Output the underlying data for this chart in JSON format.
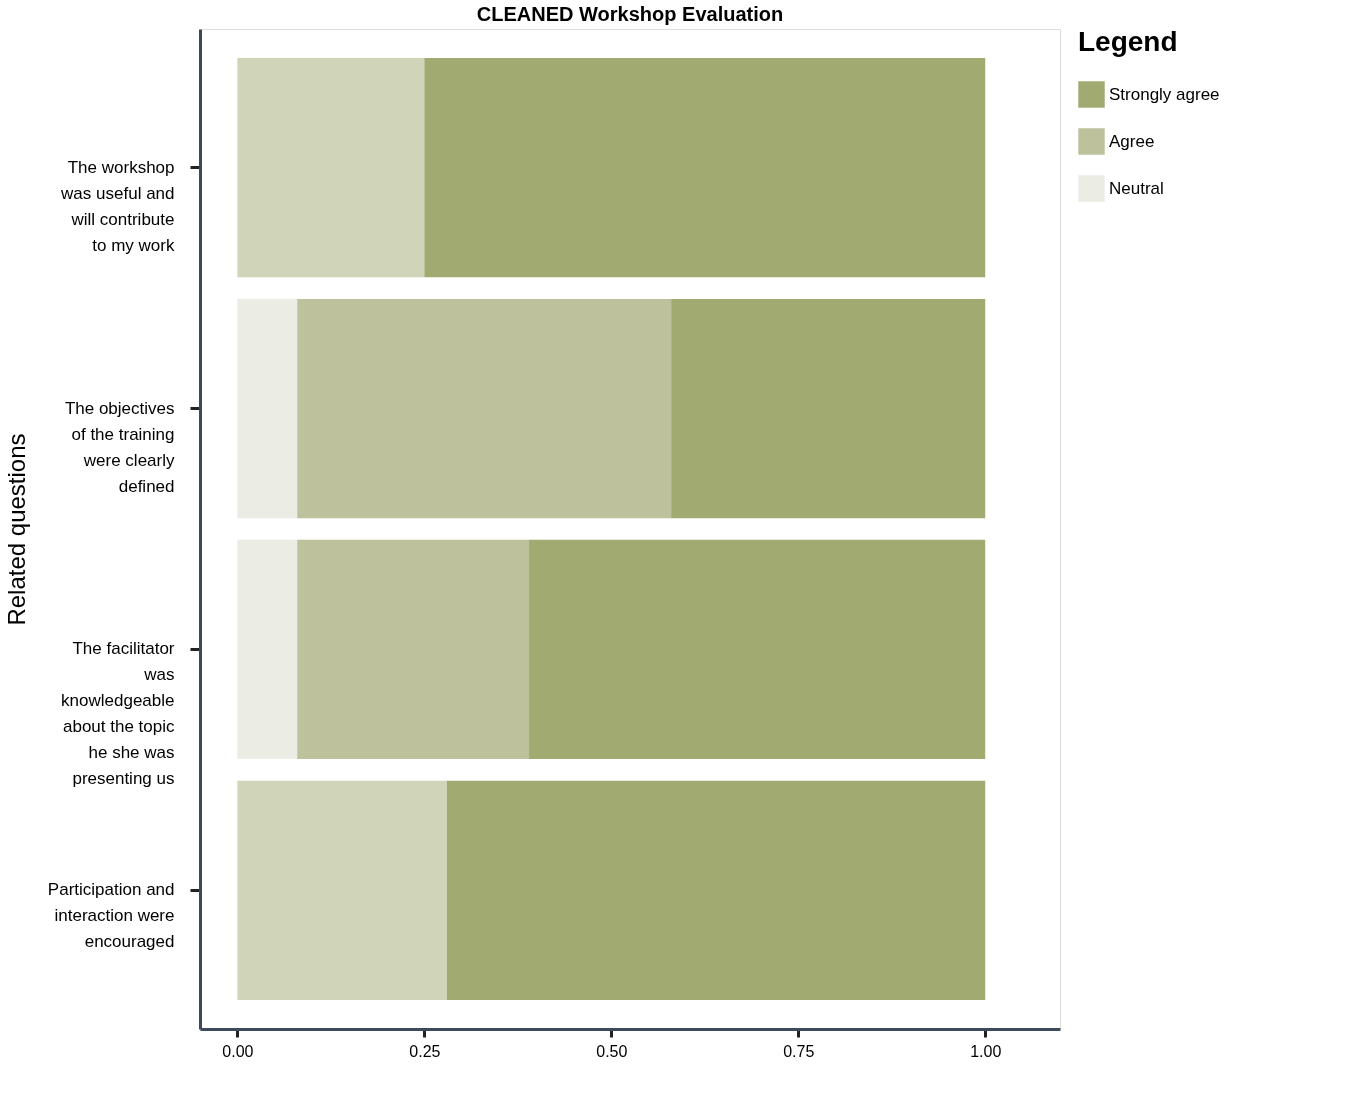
{
  "chart_data": {
    "type": "bar",
    "orientation": "horizontal",
    "stacked": true,
    "title": "CLEANED Workshop Evaluation",
    "ylabel": "Related questions",
    "legend_title": "Legend",
    "legend": "right",
    "categories": [
      "The workshop\nwas useful and\nwill contribute\nto my work",
      "The objectives\nof the training\nwere clearly\ndefined",
      "The facilitator\nwas\nknowledgeable\nabout the topic\nhe she was\npresenting us",
      "Participation and\ninteraction were\nencouraged"
    ],
    "series": [
      {
        "name": "Neutral",
        "color": "#ebece3",
        "values": [
          null,
          0.08,
          0.08,
          null
        ]
      },
      {
        "name": "Agree",
        "color": "#bdc29c",
        "colors": [
          "#d0d5b9",
          "#bdc29c",
          "#bdc29c",
          "#d0d5b9"
        ],
        "values": [
          0.25,
          0.5,
          0.31,
          0.28
        ]
      },
      {
        "name": "Strongly agree",
        "color": "#a0aa71",
        "values": [
          0.75,
          0.42,
          0.61,
          0.72
        ]
      }
    ],
    "xlim": [
      -0.05,
      1.1
    ],
    "xticks": [
      {
        "value": 0,
        "label": "0.00"
      },
      {
        "value": 0.25,
        "label": "0.25"
      },
      {
        "value": 0.5,
        "label": "0.50"
      },
      {
        "value": 0.75,
        "label": "0.75"
      },
      {
        "value": 1,
        "label": "1.00"
      }
    ],
    "grid": false
  }
}
